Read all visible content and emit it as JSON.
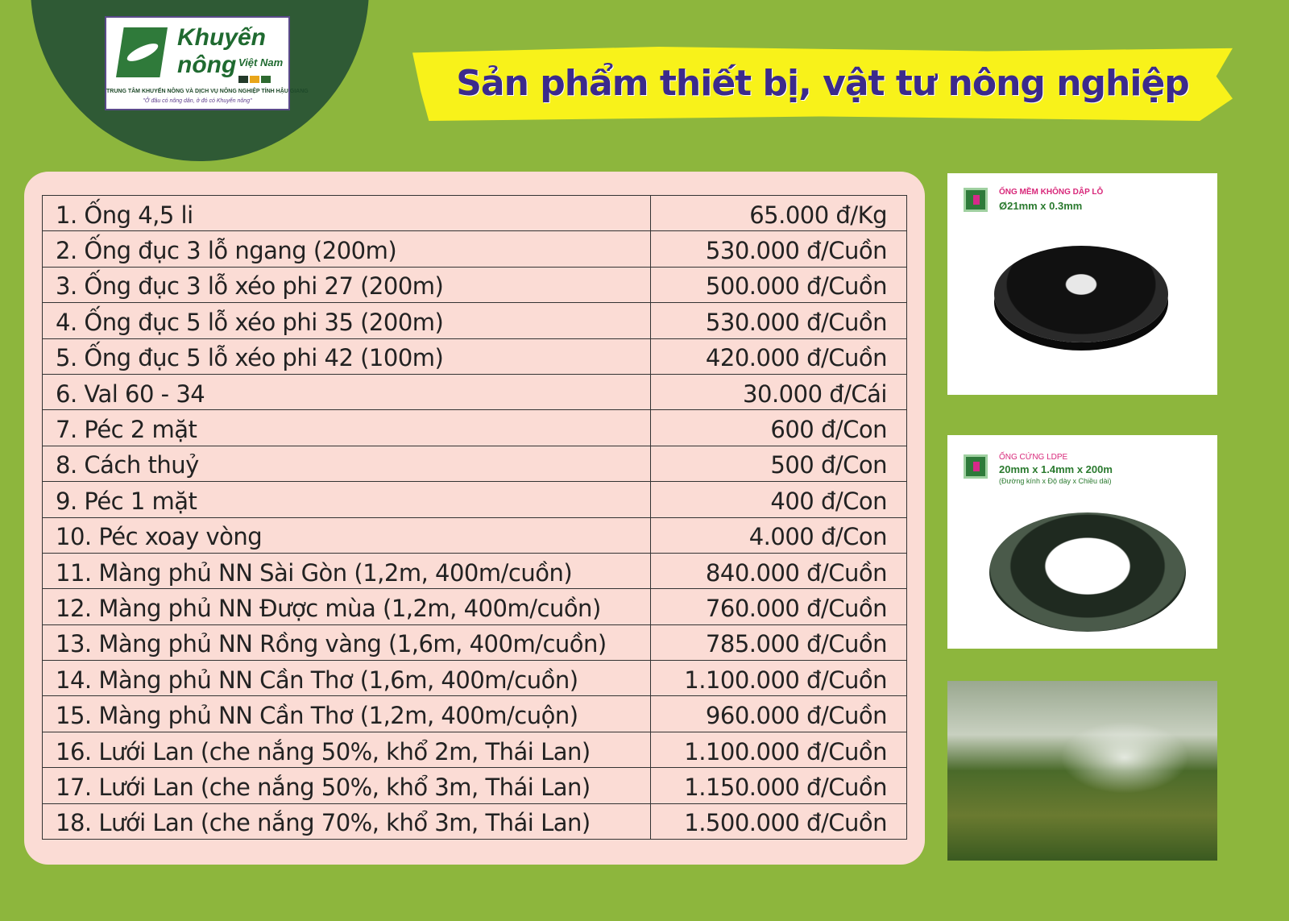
{
  "logo": {
    "line1": "Khuyến",
    "line2": "nông",
    "country": "Việt Nam",
    "org": "TRUNG TÂM KHUYẾN NÔNG VÀ DỊCH VỤ NÔNG NGHIỆP TỈNH HẬU GIANG",
    "slogan": "\"Ở đâu có nông dân, ở đó có Khuyến nông\""
  },
  "title": "Sản phẩm thiết bị, vật tư nông nghiệp",
  "colors": {
    "background": "#8db63d",
    "title": "#3b2a8c",
    "band": "#f8f21a",
    "panel": "#fbdcd5"
  },
  "items": [
    {
      "name": "1. Ống 4,5 li",
      "price": "65.000 đ/Kg"
    },
    {
      "name": "2. Ống đục 3 lỗ ngang (200m)",
      "price": "530.000 đ/Cuồn"
    },
    {
      "name": "3. Ống đục 3 lỗ xéo phi 27 (200m)",
      "price": "500.000 đ/Cuồn"
    },
    {
      "name": "4. Ống đục 5 lỗ xéo phi 35 (200m)",
      "price": "530.000 đ/Cuồn"
    },
    {
      "name": "5. Ống đục 5 lỗ xéo phi 42 (100m)",
      "price": "420.000 đ/Cuồn"
    },
    {
      "name": "6. Val 60 - 34",
      "price": "30.000 đ/Cái"
    },
    {
      "name": "7. Péc 2 mặt",
      "price": "600 đ/Con"
    },
    {
      "name": "8. Cách thuỷ",
      "price": "500 đ/Con"
    },
    {
      "name": "9. Péc 1 mặt",
      "price": "400 đ/Con"
    },
    {
      "name": "10. Péc xoay vòng",
      "price": "4.000 đ/Con"
    },
    {
      "name": "11. Màng phủ NN Sài Gòn (1,2m, 400m/cuồn)",
      "price": "840.000 đ/Cuồn"
    },
    {
      "name": "12. Màng phủ NN Được mùa (1,2m, 400m/cuồn)",
      "price": "760.000 đ/Cuồn"
    },
    {
      "name": "13. Màng phủ NN Rồng vàng (1,6m, 400m/cuồn)",
      "price": "785.000 đ/Cuồn"
    },
    {
      "name": "14. Màng phủ NN Cần Thơ (1,6m, 400m/cuồn)",
      "price": "1.100.000 đ/Cuồn"
    },
    {
      "name": "15. Màng phủ NN Cần Thơ (1,2m, 400m/cuộn)",
      "price": "960.000 đ/Cuồn"
    },
    {
      "name": "16. Lưới Lan (che nắng 50%, khổ 2m, Thái Lan)",
      "price": "1.100.000 đ/Cuồn"
    },
    {
      "name": "17. Lưới Lan (che nắng 50%, khổ 3m, Thái Lan)",
      "price": "1.150.000 đ/Cuồn"
    },
    {
      "name": "18. Lưới Lan (che nắng 70%, khổ 3m, Thái Lan)",
      "price": "1.500.000 đ/Cuồn"
    }
  ],
  "products": [
    {
      "label": "ỐNG MỀM KHÔNG DẬP LỖ",
      "spec": "Ø21mm x 0.3mm"
    },
    {
      "label": "ỐNG CỨNG LDPE",
      "spec": "20mm x 1.4mm x 200m",
      "note": "(Đường kính x Độ dày x Chiều dài)"
    }
  ]
}
